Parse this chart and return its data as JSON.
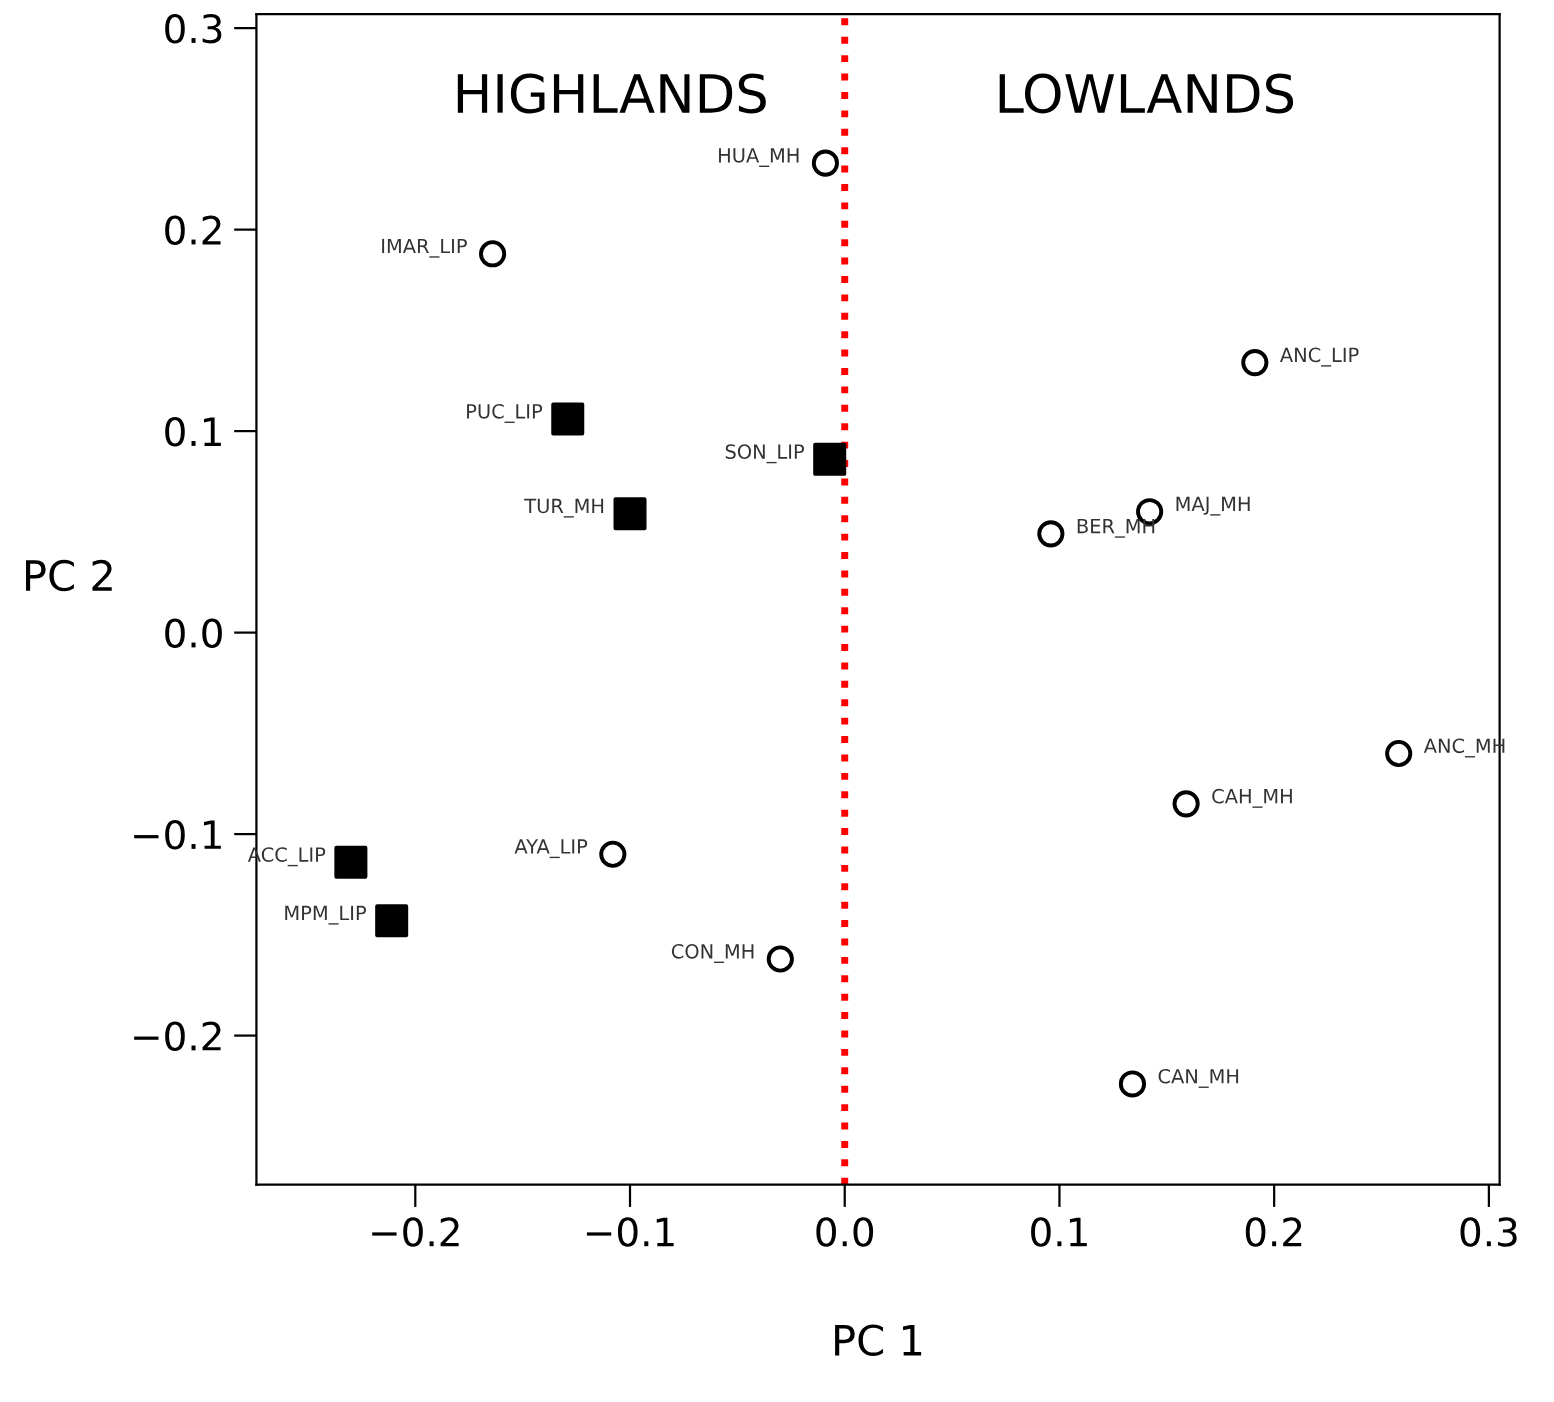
{
  "chart_data": {
    "type": "scatter",
    "xlabel": "PC 1",
    "ylabel": "PC 2",
    "xlim": [
      -0.274,
      0.305
    ],
    "ylim": [
      -0.274,
      0.307
    ],
    "xticks": [
      {
        "value": -0.2,
        "label": "−0.2"
      },
      {
        "value": -0.1,
        "label": "−0.1"
      },
      {
        "value": 0.0,
        "label": "0.0"
      },
      0.1,
      0.2,
      0.3
    ],
    "yticks": [
      {
        "value": -0.2,
        "label": "−0.2"
      },
      {
        "value": -0.1,
        "label": "−0.1"
      },
      {
        "value": 0.0,
        "label": "0.0"
      },
      0.1,
      0.2,
      0.3
    ],
    "grid": false,
    "legend": false,
    "series": [
      {
        "color": "#000000",
        "marker": "square",
        "x": [
          -0.129,
          -0.1,
          -0.007,
          -0.23,
          -0.211
        ],
        "values": [
          0.106,
          0.059,
          0.086,
          -0.114,
          -0.143
        ]
      },
      {
        "color": "#000000",
        "marker": "circle",
        "x": [
          -0.009,
          -0.164,
          0.191,
          0.142,
          0.096,
          -0.108,
          -0.03,
          0.258,
          0.159,
          0.134
        ],
        "values": [
          0.233,
          0.188,
          0.134,
          0.06,
          0.049,
          -0.11,
          -0.162,
          -0.06,
          -0.085,
          -0.224
        ]
      }
    ],
    "ref_lines": [
      {
        "axis": "x",
        "value": 0.0,
        "color": "#ff0000",
        "line_style": "dotted"
      }
    ],
    "annotations": [
      "HIGHLANDS",
      "LOWLANDS",
      {
        "text": "PUC_LIP",
        "x": -0.129,
        "y": 0.106
      },
      {
        "text": "TUR_MH",
        "x": -0.1,
        "y": 0.059
      },
      {
        "text": "SON_LIP",
        "x": -0.007,
        "y": 0.086
      },
      {
        "text": "ACC_LIP",
        "x": -0.23,
        "y": -0.114
      },
      {
        "text": "MPM_LIP",
        "x": -0.211,
        "y": -0.143
      },
      {
        "text": "HUA_MH",
        "x": -0.009,
        "y": 0.233
      },
      {
        "text": "IMAR_LIP",
        "x": -0.164,
        "y": 0.188
      },
      {
        "text": "ANC_LIP",
        "x": 0.191,
        "y": 0.134
      },
      {
        "text": "MAJ_MH",
        "x": 0.142,
        "y": 0.06
      },
      {
        "text": "BER_MH",
        "x": 0.096,
        "y": 0.049
      },
      {
        "text": "AYA_LIP",
        "x": -0.108,
        "y": -0.11
      },
      {
        "text": "CON_MH",
        "x": -0.03,
        "y": -0.162
      },
      {
        "text": "ANC_MH",
        "x": 0.258,
        "y": -0.06
      },
      {
        "text": "CAH_MH",
        "x": 0.159,
        "y": -0.085
      },
      {
        "text": "CAN_MH",
        "x": 0.134,
        "y": -0.224
      }
    ]
  }
}
